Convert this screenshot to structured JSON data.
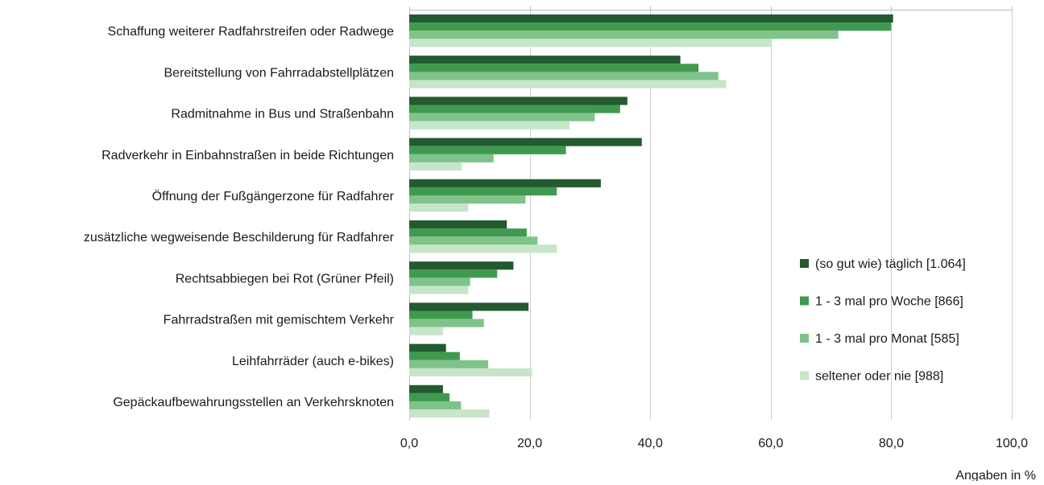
{
  "chart_data": {
    "type": "bar",
    "orientation": "horizontal",
    "categories": [
      "Schaffung weiterer Radfahrstreifen oder Radwege",
      "Bereitstellung von Fahrradabstellplätzen",
      "Radmitnahme in Bus und Straßenbahn",
      "Radverkehr in Einbahnstraßen in beide Richtungen",
      "Öffnung der Fußgängerzone für Radfahrer",
      "zusätzliche wegweisende Beschilderung für Radfahrer",
      "Rechtsabbiegen bei Rot (Grüner Pfeil)",
      "Fahrradstraßen mit gemischtem Verkehr",
      "Leihfahrräder (auch e-bikes)",
      "Gepäckaufbewahrungsstellen an Verkehrsknoten"
    ],
    "series": [
      {
        "name": "(so gut wie) täglich [1.064]",
        "color": "#245a30",
        "values": [
          80.3,
          45.0,
          36.2,
          38.6,
          31.8,
          16.2,
          17.3,
          19.8,
          6.1,
          5.6
        ]
      },
      {
        "name": "1 - 3 mal pro Woche [866]",
        "color": "#3f9a50",
        "values": [
          80.0,
          48.0,
          35.0,
          26.0,
          24.5,
          19.5,
          14.6,
          10.5,
          8.4,
          6.7
        ]
      },
      {
        "name": "1 - 3 mal pro Monat [585]",
        "color": "#7fc38a",
        "values": [
          71.2,
          51.3,
          30.8,
          14.0,
          19.3,
          21.3,
          10.1,
          12.4,
          13.1,
          8.6
        ]
      },
      {
        "name": "seltener oder nie [988]",
        "color": "#c6e5c9",
        "values": [
          60.2,
          52.6,
          26.6,
          8.7,
          9.8,
          24.5,
          9.8,
          5.6,
          20.4,
          13.3
        ]
      }
    ],
    "xlim": [
      0,
      100
    ],
    "xticks": [
      "0,0",
      "20,0",
      "40,0",
      "60,0",
      "80,0",
      "100,0"
    ],
    "xtick_values": [
      0,
      20,
      40,
      60,
      80,
      100
    ],
    "unit_note": "Angaben in %",
    "grid": true,
    "legend_position": "right"
  }
}
